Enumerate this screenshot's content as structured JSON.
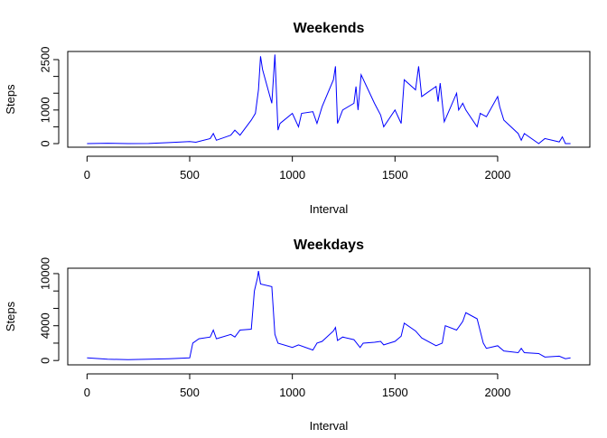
{
  "chart_data": [
    {
      "type": "line",
      "title": "Weekends",
      "x_label": "Interval",
      "y_label": "Steps",
      "x": [
        0,
        100,
        200,
        300,
        400,
        500,
        530,
        600,
        615,
        630,
        700,
        720,
        745,
        800,
        820,
        835,
        845,
        855,
        900,
        915,
        930,
        940,
        1000,
        1030,
        1045,
        1100,
        1120,
        1145,
        1200,
        1210,
        1220,
        1245,
        1300,
        1310,
        1320,
        1335,
        1400,
        1430,
        1445,
        1500,
        1515,
        1530,
        1545,
        1600,
        1615,
        1630,
        1700,
        1710,
        1720,
        1740,
        1800,
        1810,
        1830,
        1845,
        1900,
        1915,
        1945,
        2000,
        2010,
        2030,
        2100,
        2115,
        2130,
        2200,
        2230,
        2300,
        2315,
        2330,
        2355
      ],
      "series": [
        {
          "color": "#0000ff",
          "values": [
            0,
            10,
            0,
            5,
            30,
            60,
            40,
            150,
            300,
            100,
            250,
            400,
            250,
            700,
            900,
            1600,
            2600,
            2200,
            1200,
            2650,
            400,
            600,
            900,
            500,
            900,
            950,
            600,
            1100,
            1900,
            2300,
            600,
            1000,
            1200,
            1700,
            1000,
            2050,
            1200,
            850,
            500,
            1000,
            800,
            600,
            1900,
            1600,
            2300,
            1400,
            1700,
            1250,
            1800,
            650,
            1500,
            1000,
            1200,
            1000,
            500,
            900,
            800,
            1400,
            1100,
            700,
            300,
            100,
            300,
            0,
            150,
            50,
            200,
            0,
            0
          ]
        }
      ],
      "xlim": [
        -94,
        2449
      ],
      "ylim": [
        -107,
        2742
      ],
      "xticks": [
        0,
        500,
        1000,
        1500,
        2000
      ],
      "yticks": [
        0,
        {
          "value": 500,
          "label": null
        },
        1000,
        {
          "value": 1500,
          "label": null
        },
        {
          "value": 2000,
          "label": null
        },
        2500
      ]
    },
    {
      "type": "line",
      "title": "Weekdays",
      "x_label": "Interval",
      "y_label": "Steps",
      "x": [
        0,
        100,
        200,
        300,
        400,
        500,
        515,
        545,
        600,
        615,
        630,
        700,
        720,
        745,
        800,
        815,
        830,
        835,
        845,
        900,
        915,
        930,
        1000,
        1030,
        1100,
        1120,
        1145,
        1200,
        1210,
        1220,
        1245,
        1300,
        1330,
        1345,
        1400,
        1430,
        1445,
        1500,
        1530,
        1545,
        1600,
        1630,
        1700,
        1730,
        1745,
        1800,
        1830,
        1845,
        1900,
        1930,
        1945,
        2000,
        2030,
        2100,
        2115,
        2130,
        2200,
        2230,
        2300,
        2330,
        2355
      ],
      "series": [
        {
          "color": "#0000ff",
          "values": [
            300,
            150,
            100,
            150,
            200,
            300,
            2000,
            2500,
            2700,
            3500,
            2500,
            3000,
            2700,
            3500,
            3600,
            8000,
            9500,
            10300,
            8800,
            8500,
            3000,
            2000,
            1500,
            1800,
            1200,
            2000,
            2200,
            3400,
            3800,
            2300,
            2700,
            2400,
            1500,
            2000,
            2100,
            2200,
            1800,
            2200,
            2800,
            4300,
            3400,
            2600,
            1700,
            2000,
            4000,
            3500,
            4500,
            5500,
            4800,
            2000,
            1400,
            1700,
            1100,
            900,
            1400,
            900,
            800,
            400,
            500,
            200,
            300
          ]
        }
      ],
      "xlim": [
        -94,
        2449
      ],
      "ylim": [
        -500,
        10620
      ],
      "xticks": [
        0,
        500,
        1000,
        1500,
        2000
      ],
      "yticks": [
        0,
        {
          "value": 2000,
          "label": null
        },
        4000,
        {
          "value": 6000,
          "label": null
        },
        {
          "value": 8000,
          "label": null
        },
        10000
      ]
    }
  ]
}
